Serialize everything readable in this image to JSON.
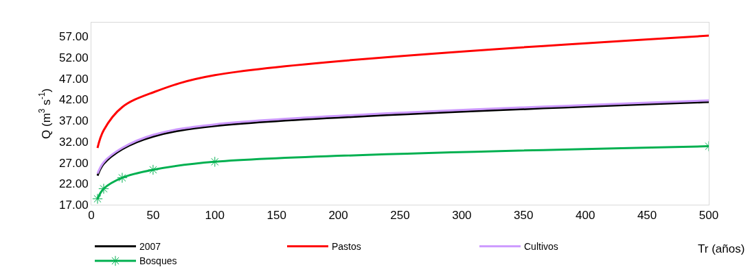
{
  "chart_data": {
    "type": "line",
    "xlabel": "Tr (años)",
    "ylabel": "Q (m$^{3}$ s$^{-1}$)",
    "x": [
      5,
      10,
      25,
      50,
      100,
      500
    ],
    "series": [
      {
        "name": "2007",
        "color": "#000000",
        "values": [
          23.9,
          26.7,
          30.2,
          33.2,
          35.7,
          41.4
        ]
      },
      {
        "name": "Pastos",
        "color": "#ff0000",
        "values": [
          30.5,
          34.7,
          40.2,
          43.7,
          47.8,
          57.2
        ]
      },
      {
        "name": "Cultivos",
        "color": "#cc99ff",
        "values": [
          24.4,
          27.1,
          30.5,
          33.6,
          36.1,
          41.8
        ]
      },
      {
        "name": "Bosques",
        "color": "#00b050",
        "marker": "cross",
        "values": [
          18.4,
          20.8,
          23.4,
          25.3,
          27.2,
          30.9
        ]
      }
    ],
    "xlim": [
      0,
      500
    ],
    "xticks": [
      0,
      50,
      100,
      150,
      200,
      250,
      300,
      350,
      400,
      450,
      500
    ],
    "ylim": [
      17,
      60.3
    ],
    "yticks": [
      {
        "value": 17,
        "label": "17.00"
      },
      {
        "value": 22,
        "label": "22.00"
      },
      {
        "value": 27,
        "label": "27.00"
      },
      {
        "value": 32,
        "label": "32.00"
      },
      {
        "value": 37,
        "label": "37.00"
      },
      {
        "value": 42,
        "label": "42.00"
      },
      {
        "value": 47,
        "label": "47.00"
      },
      {
        "value": 52,
        "label": "52.00"
      },
      {
        "value": 57,
        "label": "57.00"
      }
    ],
    "legend": "bottom",
    "line_style": "solid"
  }
}
